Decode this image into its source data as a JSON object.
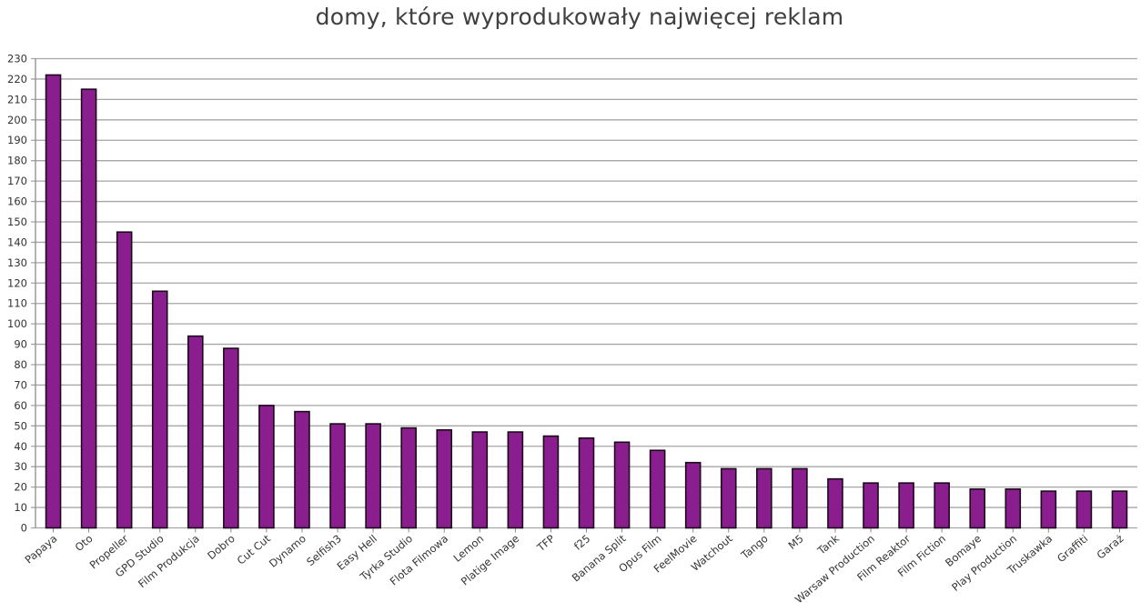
{
  "chart_data": {
    "type": "bar",
    "title": "domy, które wyprodukowały najwięcej reklam",
    "xlabel": "",
    "ylabel": "",
    "ylim": [
      0,
      230
    ],
    "ytick_step": 10,
    "grid": true,
    "legend": "none",
    "bar_color": "#8b1e8f",
    "bar_edge_color": "#1a0a1a",
    "categories": [
      "Papaya",
      "Oto",
      "Propeller",
      "GPD Studio",
      "Film Produkcja",
      "Dobro",
      "Cut Cut",
      "Dynamo",
      "Selfish3",
      "Easy Hell",
      "Tyrka Studio",
      "Flota Filmowa",
      "Lemon",
      "Platige Image",
      "TFP",
      "f25",
      "Banana Split",
      "Opus Film",
      "FeelMovie",
      "Watchout",
      "Tango",
      "M5",
      "Tank",
      "Warsaw Production",
      "Film Reaktor",
      "Film Fiction",
      "Bomaye",
      "Play Production",
      "Truskawka",
      "Graffiti",
      "Garaż"
    ],
    "values": [
      222,
      215,
      145,
      116,
      94,
      88,
      60,
      57,
      51,
      51,
      49,
      48,
      47,
      47,
      45,
      44,
      42,
      38,
      32,
      29,
      29,
      29,
      24,
      22,
      22,
      22,
      19,
      19,
      18,
      18,
      18
    ]
  }
}
